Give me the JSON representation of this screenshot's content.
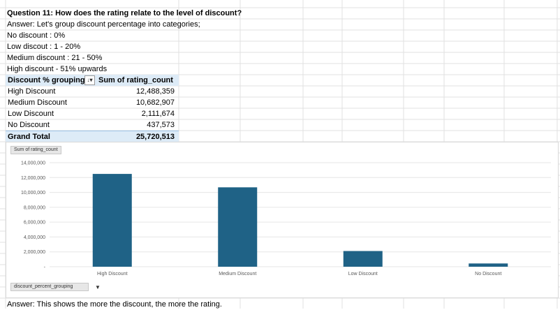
{
  "sheet": {
    "question": "Question 11: How does the rating relate to the level of discount?",
    "answer_intro": "Answer: Let's group discount percentage into categories;",
    "categories": [
      "No discount : 0%",
      "Low discout : 1 - 20%",
      "Medium discount : 21 - 50%",
      "High discount - 51% upwards"
    ],
    "conclusion": "Answer: This shows the more the discount, the more the rating."
  },
  "pivot": {
    "row_header": "Discount % grouping",
    "value_header": "Sum of rating_count",
    "rows": [
      {
        "label": "High Discount",
        "value": "12,488,359"
      },
      {
        "label": "Medium Discount",
        "value": "10,682,907"
      },
      {
        "label": "Low Discount",
        "value": "2,111,674"
      },
      {
        "label": "No Discount",
        "value": "437,573"
      }
    ],
    "total_label": "Grand Total",
    "total_value": "25,720,513"
  },
  "chart_ui": {
    "value_field_button": "Sum of rating_count",
    "axis_field_button": "discount_percent_grouping",
    "bar_color": "#1f6286"
  },
  "chart_data": {
    "type": "bar",
    "categories": [
      "High Discount",
      "Medium Discount",
      "Low Discount",
      "No Discount"
    ],
    "values": [
      12488359,
      10682907,
      2111674,
      437573
    ],
    "ylim": [
      0,
      14000000
    ],
    "yticks": [
      "-",
      "2,000,000",
      "4,000,000",
      "6,000,000",
      "8,000,000",
      "10,000,000",
      "12,000,000",
      "14,000,000"
    ],
    "xlabels": [
      "High Discount",
      "Medium Discount",
      "Low Discount",
      "No Discount"
    ],
    "grid": true,
    "legend": "none"
  }
}
